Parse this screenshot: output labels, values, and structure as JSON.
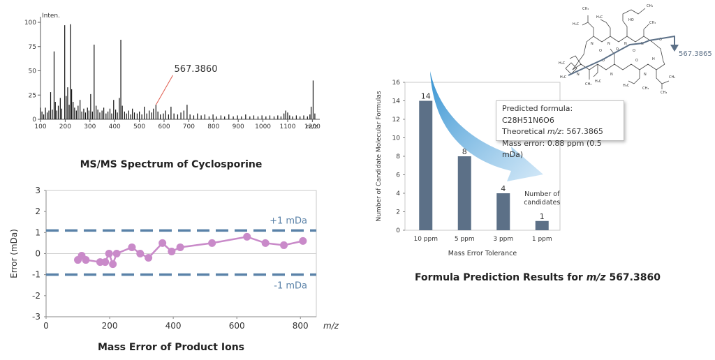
{
  "chart_data": [
    {
      "id": "msms",
      "type": "bar",
      "title": "MS/MS Spectrum of Cyclosporine",
      "ylabel": "Inten.",
      "xlabel": "m/z",
      "xlim": [
        100,
        1230
      ],
      "ylim": [
        0,
        100
      ],
      "xticks": [
        100,
        200,
        300,
        400,
        500,
        600,
        700,
        800,
        900,
        1000,
        1100,
        1200
      ],
      "yticks": [
        0,
        25,
        50,
        75,
        100
      ],
      "annotation": {
        "label": "567.3860",
        "x": 567.386
      },
      "peaks": [
        {
          "x": 100,
          "y": 12
        },
        {
          "x": 106,
          "y": 8
        },
        {
          "x": 113,
          "y": 5
        },
        {
          "x": 120,
          "y": 12
        },
        {
          "x": 127,
          "y": 7
        },
        {
          "x": 134,
          "y": 9
        },
        {
          "x": 141,
          "y": 28
        },
        {
          "x": 148,
          "y": 10
        },
        {
          "x": 155,
          "y": 70
        },
        {
          "x": 160,
          "y": 18
        },
        {
          "x": 166,
          "y": 9
        },
        {
          "x": 172,
          "y": 14
        },
        {
          "x": 180,
          "y": 22
        },
        {
          "x": 186,
          "y": 11
        },
        {
          "x": 198,
          "y": 97
        },
        {
          "x": 204,
          "y": 24
        },
        {
          "x": 210,
          "y": 33
        },
        {
          "x": 216,
          "y": 15
        },
        {
          "x": 221,
          "y": 98
        },
        {
          "x": 226,
          "y": 31
        },
        {
          "x": 232,
          "y": 18
        },
        {
          "x": 238,
          "y": 12
        },
        {
          "x": 245,
          "y": 9
        },
        {
          "x": 252,
          "y": 14
        },
        {
          "x": 260,
          "y": 20
        },
        {
          "x": 267,
          "y": 8
        },
        {
          "x": 275,
          "y": 11
        },
        {
          "x": 282,
          "y": 7
        },
        {
          "x": 290,
          "y": 12
        },
        {
          "x": 296,
          "y": 9
        },
        {
          "x": 303,
          "y": 26
        },
        {
          "x": 310,
          "y": 8
        },
        {
          "x": 317,
          "y": 77
        },
        {
          "x": 325,
          "y": 14
        },
        {
          "x": 332,
          "y": 10
        },
        {
          "x": 340,
          "y": 7
        },
        {
          "x": 349,
          "y": 9
        },
        {
          "x": 356,
          "y": 12
        },
        {
          "x": 365,
          "y": 6
        },
        {
          "x": 373,
          "y": 8
        },
        {
          "x": 381,
          "y": 11
        },
        {
          "x": 388,
          "y": 6
        },
        {
          "x": 396,
          "y": 20
        },
        {
          "x": 404,
          "y": 10
        },
        {
          "x": 411,
          "y": 7
        },
        {
          "x": 419,
          "y": 22
        },
        {
          "x": 425,
          "y": 82
        },
        {
          "x": 431,
          "y": 14
        },
        {
          "x": 440,
          "y": 8
        },
        {
          "x": 448,
          "y": 6
        },
        {
          "x": 457,
          "y": 9
        },
        {
          "x": 465,
          "y": 5
        },
        {
          "x": 472,
          "y": 11
        },
        {
          "x": 480,
          "y": 7
        },
        {
          "x": 491,
          "y": 6
        },
        {
          "x": 500,
          "y": 8
        },
        {
          "x": 510,
          "y": 5
        },
        {
          "x": 520,
          "y": 13
        },
        {
          "x": 530,
          "y": 6
        },
        {
          "x": 540,
          "y": 9
        },
        {
          "x": 550,
          "y": 7
        },
        {
          "x": 557,
          "y": 11
        },
        {
          "x": 567,
          "y": 15
        },
        {
          "x": 575,
          "y": 8
        },
        {
          "x": 585,
          "y": 5
        },
        {
          "x": 597,
          "y": 6
        },
        {
          "x": 606,
          "y": 9
        },
        {
          "x": 618,
          "y": 5
        },
        {
          "x": 628,
          "y": 13
        },
        {
          "x": 640,
          "y": 6
        },
        {
          "x": 655,
          "y": 5
        },
        {
          "x": 668,
          "y": 7
        },
        {
          "x": 680,
          "y": 9
        },
        {
          "x": 693,
          "y": 15
        },
        {
          "x": 705,
          "y": 5
        },
        {
          "x": 720,
          "y": 4
        },
        {
          "x": 735,
          "y": 6
        },
        {
          "x": 750,
          "y": 4
        },
        {
          "x": 765,
          "y": 5
        },
        {
          "x": 782,
          "y": 3
        },
        {
          "x": 798,
          "y": 5
        },
        {
          "x": 812,
          "y": 3
        },
        {
          "x": 830,
          "y": 4
        },
        {
          "x": 845,
          "y": 3
        },
        {
          "x": 862,
          "y": 5
        },
        {
          "x": 880,
          "y": 3
        },
        {
          "x": 897,
          "y": 4
        },
        {
          "x": 913,
          "y": 3
        },
        {
          "x": 930,
          "y": 5
        },
        {
          "x": 947,
          "y": 3
        },
        {
          "x": 963,
          "y": 4
        },
        {
          "x": 980,
          "y": 3
        },
        {
          "x": 996,
          "y": 4
        },
        {
          "x": 1012,
          "y": 3
        },
        {
          "x": 1028,
          "y": 4
        },
        {
          "x": 1045,
          "y": 3
        },
        {
          "x": 1060,
          "y": 4
        },
        {
          "x": 1073,
          "y": 3
        },
        {
          "x": 1085,
          "y": 6
        },
        {
          "x": 1092,
          "y": 9
        },
        {
          "x": 1100,
          "y": 7
        },
        {
          "x": 1108,
          "y": 4
        },
        {
          "x": 1120,
          "y": 3
        },
        {
          "x": 1135,
          "y": 4
        },
        {
          "x": 1150,
          "y": 3
        },
        {
          "x": 1165,
          "y": 4
        },
        {
          "x": 1180,
          "y": 3
        },
        {
          "x": 1190,
          "y": 5
        },
        {
          "x": 1195,
          "y": 13
        },
        {
          "x": 1203,
          "y": 40
        },
        {
          "x": 1210,
          "y": 6
        }
      ]
    },
    {
      "id": "error",
      "type": "scatter",
      "title": "Mass Error of Product Ions",
      "xlabel": "m/z",
      "ylabel": "Error (mDa)",
      "xlim": [
        0,
        850
      ],
      "ylim": [
        -3,
        3
      ],
      "xticks": [
        0,
        200,
        400,
        600,
        800
      ],
      "yticks": [
        -3,
        -2,
        -1,
        0,
        1,
        2,
        3
      ],
      "reference_lines": [
        {
          "label": "+1 mDa",
          "y": 1.1
        },
        {
          "label": "-1 mDa",
          "y": -1.0
        }
      ],
      "points": [
        {
          "x": 100,
          "y": -0.3
        },
        {
          "x": 112,
          "y": -0.1
        },
        {
          "x": 125,
          "y": -0.3
        },
        {
          "x": 170,
          "y": -0.4
        },
        {
          "x": 186,
          "y": -0.4
        },
        {
          "x": 198,
          "y": 0.0
        },
        {
          "x": 210,
          "y": -0.5
        },
        {
          "x": 222,
          "y": 0.0
        },
        {
          "x": 270,
          "y": 0.3
        },
        {
          "x": 296,
          "y": 0.0
        },
        {
          "x": 322,
          "y": -0.2
        },
        {
          "x": 366,
          "y": 0.5
        },
        {
          "x": 395,
          "y": 0.1
        },
        {
          "x": 422,
          "y": 0.3
        },
        {
          "x": 522,
          "y": 0.5
        },
        {
          "x": 632,
          "y": 0.8
        },
        {
          "x": 690,
          "y": 0.5
        },
        {
          "x": 748,
          "y": 0.4
        },
        {
          "x": 808,
          "y": 0.6
        }
      ]
    },
    {
      "id": "formula",
      "type": "bar",
      "title_prefix": "Formula Prediction Results for ",
      "title_mz": "m/z",
      "title_value": " 567.3860",
      "xlabel": "Mass Error Tolerance",
      "ylabel": "Number of Candidate Molecular Formulas",
      "ylim": [
        0,
        16
      ],
      "yticks": [
        0,
        2,
        4,
        6,
        8,
        10,
        12,
        14,
        16
      ],
      "categories": [
        "10 ppm",
        "5 ppm",
        "3 ppm",
        "1 ppm"
      ],
      "values": [
        14,
        8,
        4,
        1
      ],
      "annotation_line1": "Number of",
      "annotation_line2": "candidates",
      "bar_color": "#5c7087",
      "callout": {
        "predicted_label": "Predicted formula: ",
        "predicted_value": "C28H51N6O6",
        "theoretical_label": "Theoretical ",
        "theoretical_mz": "m/z",
        "theoretical_value": ": 567.3865",
        "error_label": "Mass error: 0.88 ppm (0.5 mDa)"
      }
    }
  ],
  "structure": {
    "fragment_label": "567.3865",
    "labels": {
      "ch3": "CH₃",
      "h3c": "H₃C",
      "n": "N",
      "o": "O",
      "h": "H",
      "ho": "HO"
    }
  },
  "colors": {
    "axis": "#555555",
    "spectrum": "#111111",
    "annotation_line": "#e05a4c",
    "error_line": "#5a82a8",
    "scatter": "#c98ac9",
    "bar": "#5c7087",
    "arrow_start": "#2e8fd0",
    "arrow_end": "#c9e3f6",
    "fragment_arrow": "#5c7087"
  }
}
